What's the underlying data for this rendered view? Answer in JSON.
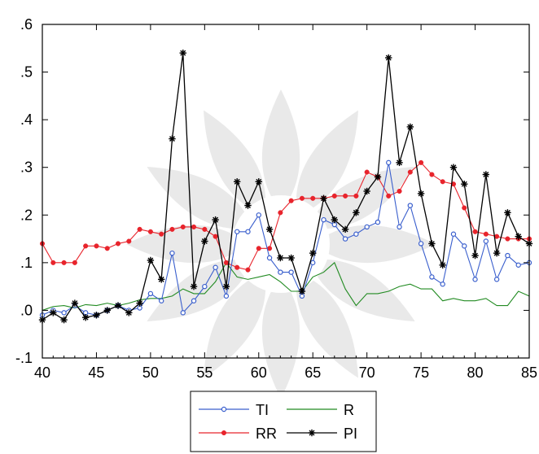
{
  "chart_data": {
    "type": "line",
    "title": "",
    "xlabel": "",
    "ylabel": "",
    "xlim": [
      40,
      85
    ],
    "ylim": [
      -0.1,
      0.6
    ],
    "x_ticks": [
      40,
      45,
      50,
      55,
      60,
      65,
      70,
      75,
      80,
      85
    ],
    "x_tick_labels": [
      "40",
      "45",
      "50",
      "55",
      "60",
      "65",
      "70",
      "75",
      "80",
      "85"
    ],
    "y_ticks": [
      -0.1,
      0.0,
      0.1,
      0.2,
      0.3,
      0.4,
      0.5,
      0.6
    ],
    "y_tick_labels": [
      "-.1",
      ".0",
      ".1",
      ".2",
      ".3",
      ".4",
      ".5",
      ".6"
    ],
    "grid": false,
    "legend_position": "bottom-center",
    "x": [
      40,
      41,
      42,
      43,
      44,
      45,
      46,
      47,
      48,
      49,
      50,
      51,
      52,
      53,
      54,
      55,
      56,
      57,
      58,
      59,
      60,
      61,
      62,
      63,
      64,
      65,
      66,
      67,
      68,
      69,
      70,
      71,
      72,
      73,
      74,
      75,
      76,
      77,
      78,
      79,
      80,
      81,
      82,
      83,
      84,
      85
    ],
    "series": [
      {
        "name": "TI",
        "color": "#3a5fcd",
        "marker": "circle",
        "values": [
          -0.01,
          0.0,
          -0.005,
          0.01,
          -0.005,
          -0.01,
          0.0,
          0.01,
          0.0,
          0.005,
          0.035,
          0.02,
          0.12,
          -0.005,
          0.02,
          0.05,
          0.09,
          0.03,
          0.165,
          0.165,
          0.2,
          0.11,
          0.08,
          0.08,
          0.03,
          0.1,
          0.19,
          0.18,
          0.15,
          0.16,
          0.175,
          0.185,
          0.31,
          0.175,
          0.22,
          0.14,
          0.07,
          0.055,
          0.16,
          0.135,
          0.065,
          0.145,
          0.065,
          0.115,
          0.095,
          0.1
        ]
      },
      {
        "name": "R",
        "color": "#228b22",
        "marker": "none",
        "values": [
          0.0,
          0.008,
          0.01,
          0.005,
          0.012,
          0.01,
          0.015,
          0.01,
          0.015,
          0.022,
          0.025,
          0.025,
          0.03,
          0.045,
          0.035,
          0.035,
          0.06,
          0.1,
          0.07,
          0.065,
          0.07,
          0.075,
          0.06,
          0.04,
          0.04,
          0.07,
          0.08,
          0.1,
          0.045,
          0.01,
          0.035,
          0.035,
          0.04,
          0.05,
          0.055,
          0.045,
          0.045,
          0.02,
          0.025,
          0.02,
          0.02,
          0.025,
          0.01,
          0.01,
          0.04,
          0.03
        ]
      },
      {
        "name": "RR",
        "color": "#e8242c",
        "marker": "dot",
        "values": [
          0.14,
          0.1,
          0.1,
          0.1,
          0.135,
          0.135,
          0.13,
          0.14,
          0.145,
          0.17,
          0.165,
          0.16,
          0.17,
          0.175,
          0.175,
          0.17,
          0.155,
          0.1,
          0.09,
          0.085,
          0.13,
          0.13,
          0.205,
          0.23,
          0.235,
          0.235,
          0.235,
          0.24,
          0.24,
          0.24,
          0.29,
          0.28,
          0.24,
          0.25,
          0.29,
          0.31,
          0.285,
          0.27,
          0.265,
          0.215,
          0.165,
          0.16,
          0.155,
          0.15,
          0.15,
          0.15
        ]
      },
      {
        "name": "PI",
        "color": "#000000",
        "marker": "star",
        "values": [
          -0.02,
          -0.005,
          -0.02,
          0.015,
          -0.015,
          -0.01,
          0.0,
          0.01,
          -0.005,
          0.015,
          0.105,
          0.065,
          0.36,
          0.54,
          0.05,
          0.145,
          0.19,
          0.05,
          0.27,
          0.22,
          0.27,
          0.17,
          0.11,
          0.11,
          0.04,
          0.12,
          0.235,
          0.19,
          0.17,
          0.205,
          0.25,
          0.28,
          0.53,
          0.31,
          0.385,
          0.245,
          0.14,
          0.095,
          0.3,
          0.265,
          0.115,
          0.285,
          0.12,
          0.205,
          0.155,
          0.14
        ]
      }
    ]
  }
}
